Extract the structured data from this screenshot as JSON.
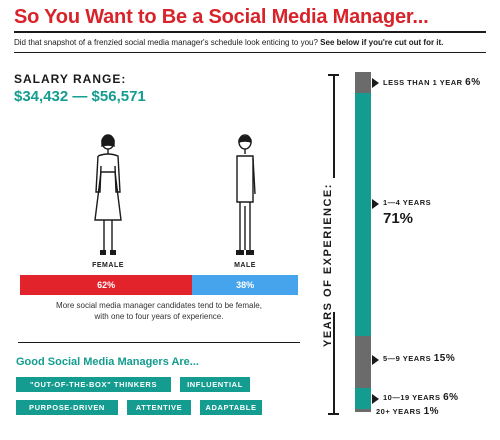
{
  "header": {
    "title": "So You Want to Be a Social Media Manager...",
    "subtitle_lead": "Did that snapshot of a frenzied social media manager's schedule look enticing to you? ",
    "subtitle_emphasis": "See below if you're cut out for it."
  },
  "salary": {
    "label": "SALARY RANGE:",
    "value": "$34,432 — $56,571"
  },
  "gender": {
    "female_label": "FEMALE",
    "male_label": "MALE",
    "female_pct_text": "62%",
    "male_pct_text": "38%",
    "female_pct": 62,
    "male_pct": 38,
    "caption_line1": "More social media manager candidates tend to be female,",
    "caption_line2": "with one to four years of experience.",
    "colors": {
      "female": "#e3232b",
      "male": "#45a4ec"
    }
  },
  "traits": {
    "title": "Good Social Media Managers Are...",
    "tags": [
      "\"OUT-OF-THE-BOX\" THINKERS",
      "INFLUENTIAL",
      "PURPOSE-DRIVEN",
      "ATTENTIVE",
      "ADAPTABLE"
    ]
  },
  "experience": {
    "axis_label": "YEARS OF EXPERIENCE:",
    "segments": [
      {
        "label": "LESS THAN 1 YEAR",
        "pct_text": "6%",
        "pct": 6,
        "color": "#6b6b6b"
      },
      {
        "label": "1—4 YEARS",
        "pct_text": "71%",
        "pct": 71,
        "color": "#139c8f"
      },
      {
        "label": "5—9 YEARS",
        "pct_text": "15%",
        "pct": 15,
        "color": "#6b6b6b"
      },
      {
        "label": "10—19 YEARS",
        "pct_text": "6%",
        "pct": 6,
        "color": "#139c8f"
      },
      {
        "label": "20+ YEARS",
        "pct_text": "1%",
        "pct": 1,
        "color": "#6b6b6b"
      }
    ]
  },
  "colors": {
    "accent_red": "#d8232a",
    "accent_teal": "#139c8f"
  }
}
